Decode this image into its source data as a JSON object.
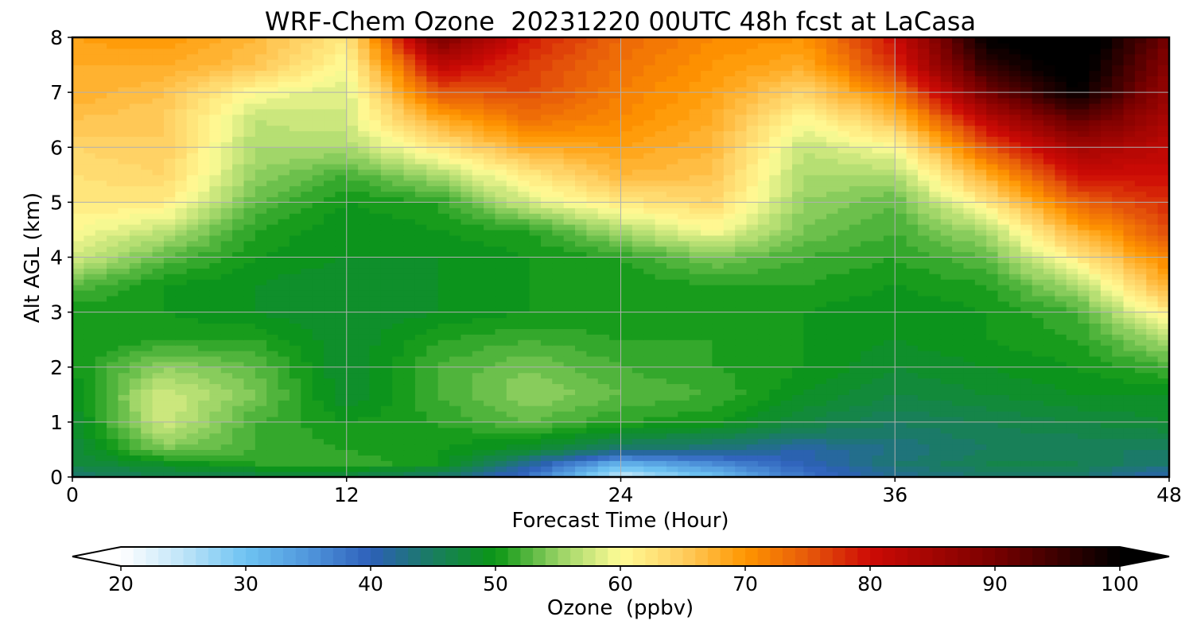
{
  "chart_data": {
    "type": "heatmap",
    "title": "WRF-Chem Ozone  20231220 00UTC 48h fcst at LaCasa",
    "xlabel": "Forecast Time (Hour)",
    "ylabel": "Alt AGL (km)",
    "xlim": [
      0,
      48
    ],
    "ylim": [
      0,
      8
    ],
    "xticks": [
      0,
      12,
      24,
      36,
      48
    ],
    "yticks": [
      0,
      1,
      2,
      3,
      4,
      5,
      6,
      7,
      8
    ],
    "grid": true,
    "colorbar": {
      "label": "Ozone  (ppbv)",
      "range": [
        20,
        100
      ],
      "ticks": [
        20,
        30,
        40,
        50,
        60,
        70,
        80,
        90,
        100
      ],
      "extend": "both",
      "orientation": "horizontal"
    },
    "x": [
      0,
      4,
      8,
      12,
      16,
      20,
      24,
      28,
      32,
      36,
      40,
      44,
      48
    ],
    "y": [
      0,
      0.25,
      0.5,
      1,
      1.5,
      2,
      2.5,
      3,
      3.5,
      4,
      4.5,
      5,
      5.5,
      6,
      6.5,
      7,
      7.5,
      8
    ],
    "z": [
      [
        44,
        46,
        46,
        46,
        44,
        38,
        24,
        30,
        38,
        42,
        44,
        44,
        40
      ],
      [
        47,
        49,
        51,
        52,
        50,
        42,
        32,
        36,
        40,
        44,
        46,
        46,
        44
      ],
      [
        47,
        54,
        52,
        51,
        50,
        48,
        44,
        43,
        41,
        43,
        45,
        45,
        45
      ],
      [
        48,
        58,
        52,
        50,
        51,
        53,
        51,
        50,
        47,
        45,
        46,
        47,
        48
      ],
      [
        49,
        58,
        54,
        48,
        52,
        55,
        53,
        52,
        49,
        47,
        48,
        49,
        49
      ],
      [
        50,
        55,
        53,
        48,
        52,
        54,
        52,
        51,
        50,
        48,
        49,
        50,
        52
      ],
      [
        50,
        51,
        51,
        48,
        51,
        52,
        51,
        51,
        50,
        49,
        50,
        51,
        56
      ],
      [
        50,
        50,
        49,
        48,
        49,
        50,
        50,
        50,
        50,
        49,
        50,
        52,
        62
      ],
      [
        53,
        50,
        49,
        48,
        49,
        50,
        50,
        51,
        51,
        50,
        51,
        56,
        68
      ],
      [
        58,
        53,
        50,
        49,
        49,
        50,
        51,
        54,
        52,
        51,
        53,
        62,
        72
      ],
      [
        60,
        57,
        51,
        49,
        50,
        51,
        56,
        60,
        54,
        52,
        56,
        68,
        76
      ],
      [
        62,
        62,
        53,
        50,
        51,
        58,
        62,
        64,
        55,
        53,
        62,
        74,
        78
      ],
      [
        63,
        64,
        55,
        52,
        56,
        62,
        67,
        66,
        56,
        56,
        68,
        80,
        80
      ],
      [
        64,
        65,
        56,
        56,
        62,
        68,
        69,
        67,
        57,
        60,
        75,
        85,
        82
      ],
      [
        66,
        65,
        57,
        58,
        68,
        73,
        71,
        68,
        60,
        66,
        82,
        92,
        84
      ],
      [
        68,
        66,
        60,
        58,
        75,
        76,
        72,
        69,
        64,
        72,
        90,
        100,
        86
      ],
      [
        68,
        68,
        66,
        60,
        82,
        77,
        73,
        70,
        68,
        78,
        96,
        102,
        88
      ],
      [
        69,
        70,
        67,
        62,
        90,
        79,
        74,
        71,
        70,
        80,
        100,
        104,
        90
      ]
    ]
  }
}
